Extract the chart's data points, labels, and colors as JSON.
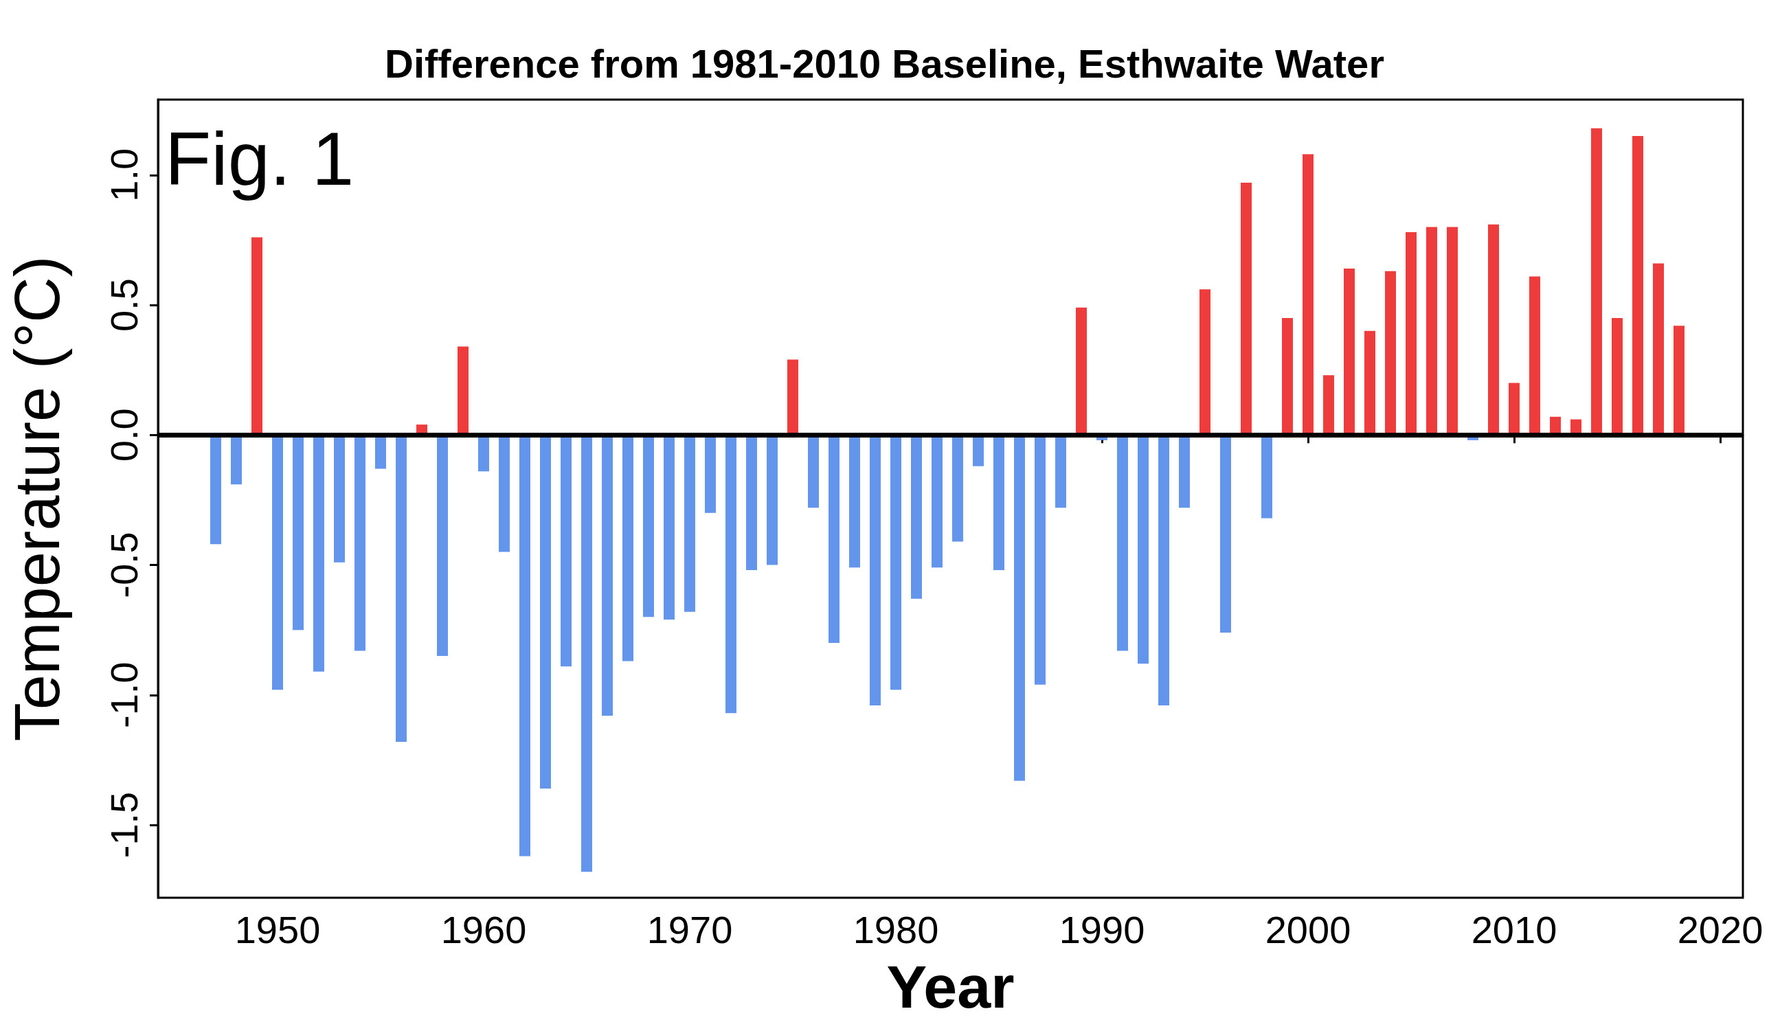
{
  "chart_data": {
    "type": "bar",
    "title": "Difference from 1981-2010 Baseline, Esthwaite Water",
    "xlabel": "Year",
    "ylabel": "Temperature (°C)",
    "annotations": [
      "Fig. 1"
    ],
    "x": [
      1947,
      1948,
      1949,
      1950,
      1951,
      1952,
      1953,
      1954,
      1955,
      1956,
      1957,
      1958,
      1959,
      1960,
      1961,
      1962,
      1963,
      1964,
      1965,
      1966,
      1967,
      1968,
      1969,
      1970,
      1971,
      1972,
      1973,
      1974,
      1975,
      1976,
      1977,
      1978,
      1979,
      1980,
      1981,
      1982,
      1983,
      1984,
      1985,
      1986,
      1987,
      1988,
      1989,
      1990,
      1991,
      1992,
      1993,
      1994,
      1995,
      1996,
      1997,
      1998,
      1999,
      2000,
      2001,
      2002,
      2003,
      2004,
      2005,
      2006,
      2007,
      2008,
      2009,
      2010,
      2011,
      2012,
      2013,
      2014,
      2015,
      2016,
      2017,
      2018
    ],
    "values": [
      -0.42,
      -0.19,
      0.76,
      -0.98,
      -0.75,
      -0.91,
      -0.49,
      -0.83,
      -0.13,
      -1.18,
      0.04,
      -0.85,
      0.34,
      -0.14,
      -0.45,
      -1.62,
      -1.36,
      -0.89,
      -1.68,
      -1.08,
      -0.87,
      -0.7,
      -0.71,
      -0.68,
      -0.3,
      -1.07,
      -0.52,
      -0.5,
      0.29,
      -0.28,
      -0.8,
      -0.51,
      -1.04,
      -0.98,
      -0.63,
      -0.51,
      -0.41,
      -0.12,
      -0.52,
      -1.33,
      -0.96,
      -0.28,
      0.49,
      -0.02,
      -0.83,
      -0.88,
      -1.04,
      -0.28,
      0.56,
      -0.76,
      0.97,
      -0.32,
      0.45,
      1.08,
      0.23,
      0.64,
      0.4,
      0.63,
      0.78,
      0.8,
      0.8,
      -0.02,
      0.81,
      0.2,
      0.61,
      0.07,
      0.06,
      1.18,
      0.45,
      1.15,
      0.66,
      0.42
    ],
    "colors": [
      "#6495ed",
      "#6495ed",
      "#ee3b3b",
      "#6495ed",
      "#6495ed",
      "#6495ed",
      "#6495ed",
      "#6495ed",
      "#6495ed",
      "#6495ed",
      "#ee3b3b",
      "#6495ed",
      "#ee3b3b",
      "#6495ed",
      "#6495ed",
      "#6495ed",
      "#6495ed",
      "#6495ed",
      "#6495ed",
      "#6495ed",
      "#6495ed",
      "#6495ed",
      "#6495ed",
      "#6495ed",
      "#6495ed",
      "#6495ed",
      "#6495ed",
      "#6495ed",
      "#ee3b3b",
      "#6495ed",
      "#6495ed",
      "#6495ed",
      "#6495ed",
      "#6495ed",
      "#6495ed",
      "#6495ed",
      "#6495ed",
      "#6495ed",
      "#6495ed",
      "#6495ed",
      "#6495ed",
      "#6495ed",
      "#ee3b3b",
      "#6495ed",
      "#6495ed",
      "#6495ed",
      "#6495ed",
      "#6495ed",
      "#ee3b3b",
      "#6495ed",
      "#ee3b3b",
      "#6495ed",
      "#ee3b3b",
      "#ee3b3b",
      "#ee3b3b",
      "#ee3b3b",
      "#ee3b3b",
      "#ee3b3b",
      "#ee3b3b",
      "#ee3b3b",
      "#ee3b3b",
      "#6495ed",
      "#ee3b3b",
      "#ee3b3b",
      "#ee3b3b",
      "#ee3b3b",
      "#ee3b3b",
      "#ee3b3b",
      "#ee3b3b",
      "#ee3b3b",
      "#ee3b3b",
      "#ee3b3b"
    ],
    "xlim": [
      1944.2,
      2021.1
    ],
    "xticks": [
      1950,
      1960,
      1970,
      1980,
      1990,
      2000,
      2010,
      2020
    ],
    "ylim": [
      -1.78,
      1.29
    ],
    "yticks": [
      {
        "value": -1.5,
        "label": "-1.5"
      },
      {
        "value": -1.0,
        "label": "-1.0"
      },
      {
        "value": -0.5,
        "label": "-0.5"
      },
      {
        "value": 0,
        "label": "0.0"
      },
      {
        "value": 0.5,
        "label": "0.5"
      },
      {
        "value": 1.0,
        "label": "1.0"
      }
    ],
    "ref_lines": [
      {
        "axis": "y",
        "value": 0,
        "color": "#000000"
      }
    ]
  }
}
